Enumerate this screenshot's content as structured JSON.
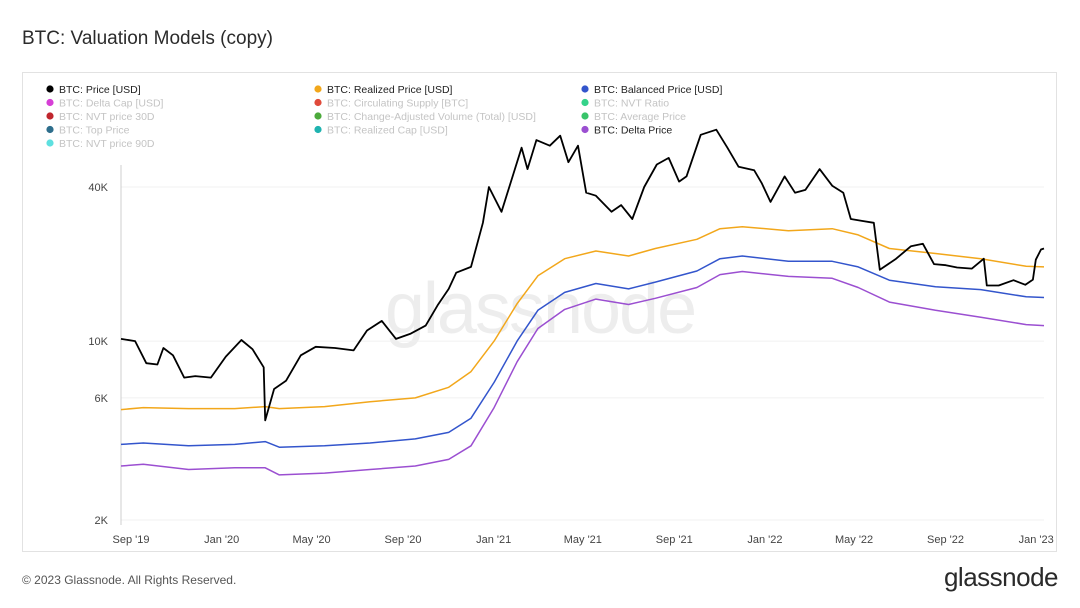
{
  "title": "BTC: Valuation Models (copy)",
  "footer": {
    "copyright": "© 2023 Glassnode. All Rights Reserved.",
    "logo": "glassnode"
  },
  "watermark": "glassnode",
  "chart_data": {
    "type": "line",
    "yscale": "log",
    "ylim": [
      2000,
      80000
    ],
    "xlim": [
      "2019-09-01",
      "2023-01-25"
    ],
    "y_ticks": [
      {
        "value": 2000,
        "label": "2K"
      },
      {
        "value": 6000,
        "label": "6K"
      },
      {
        "value": 10000,
        "label": "10K"
      },
      {
        "value": 40000,
        "label": "40K"
      }
    ],
    "x_ticks": [
      {
        "date": "2019-09-01",
        "label": "Sep '19"
      },
      {
        "date": "2020-01-01",
        "label": "Jan '20"
      },
      {
        "date": "2020-05-01",
        "label": "May '20"
      },
      {
        "date": "2020-09-01",
        "label": "Sep '20"
      },
      {
        "date": "2021-01-01",
        "label": "Jan '21"
      },
      {
        "date": "2021-05-01",
        "label": "May '21"
      },
      {
        "date": "2021-09-01",
        "label": "Sep '21"
      },
      {
        "date": "2022-01-01",
        "label": "Jan '22"
      },
      {
        "date": "2022-05-01",
        "label": "May '22"
      },
      {
        "date": "2022-09-01",
        "label": "Sep '22"
      },
      {
        "date": "2023-01-01",
        "label": "Jan '23"
      }
    ],
    "legend_position": "top-left",
    "legend": [
      {
        "label": "BTC: Price [USD]",
        "color": "#000000",
        "active": true
      },
      {
        "label": "BTC: Realized Price [USD]",
        "color": "#f2a71b",
        "active": true
      },
      {
        "label": "BTC: Balanced Price [USD]",
        "color": "#3355cc",
        "active": true
      },
      {
        "label": "BTC: Delta Cap [USD]",
        "color": "#d63fd6",
        "active": false
      },
      {
        "label": "BTC: Circulating Supply [BTC]",
        "color": "#e04a3a",
        "active": false
      },
      {
        "label": "BTC: NVT Ratio",
        "color": "#35d38a",
        "active": false
      },
      {
        "label": "BTC: NVT price 30D",
        "color": "#c0262d",
        "active": false
      },
      {
        "label": "BTC: Change-Adjusted Volume (Total) [USD]",
        "color": "#4caa3c",
        "active": false
      },
      {
        "label": "BTC: Average Price",
        "color": "#39c46a",
        "active": false
      },
      {
        "label": "BTC: Top Price",
        "color": "#2e6e8c",
        "active": false
      },
      {
        "label": "BTC: Realized Cap [USD]",
        "color": "#1fb3b0",
        "active": false
      },
      {
        "label": "BTC: Delta Price",
        "color": "#9b4fd1",
        "active": true
      },
      {
        "label": "BTC: NVT price 90D",
        "color": "#5ee0e0",
        "active": false
      }
    ],
    "series": [
      {
        "name": "BTC: Price [USD]",
        "color": "#000000",
        "points": [
          [
            "2019-09-01",
            10200
          ],
          [
            "2019-09-20",
            10000
          ],
          [
            "2019-10-05",
            8200
          ],
          [
            "2019-10-20",
            8100
          ],
          [
            "2019-10-28",
            9400
          ],
          [
            "2019-11-10",
            8800
          ],
          [
            "2019-11-25",
            7200
          ],
          [
            "2019-12-10",
            7300
          ],
          [
            "2019-12-31",
            7200
          ],
          [
            "2020-01-20",
            8700
          ],
          [
            "2020-02-10",
            10100
          ],
          [
            "2020-02-25",
            9300
          ],
          [
            "2020-03-11",
            7900
          ],
          [
            "2020-03-13",
            4900
          ],
          [
            "2020-03-25",
            6500
          ],
          [
            "2020-04-10",
            7000
          ],
          [
            "2020-04-30",
            8800
          ],
          [
            "2020-05-20",
            9500
          ],
          [
            "2020-06-15",
            9400
          ],
          [
            "2020-07-10",
            9200
          ],
          [
            "2020-07-28",
            11000
          ],
          [
            "2020-08-17",
            12000
          ],
          [
            "2020-09-05",
            10200
          ],
          [
            "2020-09-25",
            10700
          ],
          [
            "2020-10-15",
            11500
          ],
          [
            "2020-10-31",
            13800
          ],
          [
            "2020-11-15",
            16000
          ],
          [
            "2020-11-25",
            18500
          ],
          [
            "2020-12-15",
            19500
          ],
          [
            "2020-12-31",
            29000
          ],
          [
            "2021-01-08",
            40000
          ],
          [
            "2021-01-25",
            32000
          ],
          [
            "2021-02-10",
            45000
          ],
          [
            "2021-02-21",
            57000
          ],
          [
            "2021-03-01",
            47000
          ],
          [
            "2021-03-13",
            61000
          ],
          [
            "2021-03-31",
            58000
          ],
          [
            "2021-04-14",
            63500
          ],
          [
            "2021-04-25",
            50000
          ],
          [
            "2021-05-08",
            58000
          ],
          [
            "2021-05-19",
            38000
          ],
          [
            "2021-06-01",
            37000
          ],
          [
            "2021-06-22",
            32000
          ],
          [
            "2021-07-05",
            34000
          ],
          [
            "2021-07-20",
            30000
          ],
          [
            "2021-08-05",
            40000
          ],
          [
            "2021-08-22",
            49000
          ],
          [
            "2021-09-07",
            52000
          ],
          [
            "2021-09-21",
            42000
          ],
          [
            "2021-10-01",
            44000
          ],
          [
            "2021-10-20",
            64000
          ],
          [
            "2021-11-10",
            67000
          ],
          [
            "2021-11-25",
            57000
          ],
          [
            "2021-12-10",
            48000
          ],
          [
            "2021-12-31",
            46500
          ],
          [
            "2022-01-10",
            41500
          ],
          [
            "2022-01-22",
            35000
          ],
          [
            "2022-02-10",
            44000
          ],
          [
            "2022-02-24",
            38000
          ],
          [
            "2022-03-10",
            39000
          ],
          [
            "2022-03-29",
            47000
          ],
          [
            "2022-04-15",
            40500
          ],
          [
            "2022-04-30",
            38000
          ],
          [
            "2022-05-10",
            30000
          ],
          [
            "2022-05-25",
            29500
          ],
          [
            "2022-06-10",
            29000
          ],
          [
            "2022-06-18",
            19000
          ],
          [
            "2022-07-10",
            21000
          ],
          [
            "2022-07-30",
            23500
          ],
          [
            "2022-08-15",
            24000
          ],
          [
            "2022-08-30",
            20000
          ],
          [
            "2022-09-15",
            19800
          ],
          [
            "2022-09-30",
            19400
          ],
          [
            "2022-10-20",
            19200
          ],
          [
            "2022-11-05",
            21000
          ],
          [
            "2022-11-09",
            16500
          ],
          [
            "2022-11-25",
            16500
          ],
          [
            "2022-12-15",
            17300
          ],
          [
            "2022-12-31",
            16600
          ],
          [
            "2023-01-10",
            17400
          ],
          [
            "2023-01-14",
            20800
          ],
          [
            "2023-01-21",
            22800
          ],
          [
            "2023-01-25",
            23000
          ]
        ]
      },
      {
        "name": "BTC: Realized Price [USD]",
        "color": "#f2a71b",
        "points": [
          [
            "2019-09-01",
            5400
          ],
          [
            "2019-10-01",
            5500
          ],
          [
            "2019-12-01",
            5450
          ],
          [
            "2020-02-01",
            5450
          ],
          [
            "2020-03-13",
            5550
          ],
          [
            "2020-04-01",
            5450
          ],
          [
            "2020-06-01",
            5550
          ],
          [
            "2020-08-01",
            5800
          ],
          [
            "2020-10-01",
            6000
          ],
          [
            "2020-11-15",
            6600
          ],
          [
            "2020-12-15",
            7600
          ],
          [
            "2021-01-15",
            10000
          ],
          [
            "2021-02-15",
            14000
          ],
          [
            "2021-03-15",
            18000
          ],
          [
            "2021-04-20",
            21000
          ],
          [
            "2021-06-01",
            22500
          ],
          [
            "2021-07-15",
            21500
          ],
          [
            "2021-08-20",
            23000
          ],
          [
            "2021-10-15",
            25000
          ],
          [
            "2021-11-15",
            27500
          ],
          [
            "2021-12-15",
            28000
          ],
          [
            "2022-02-15",
            27000
          ],
          [
            "2022-04-15",
            27500
          ],
          [
            "2022-05-20",
            26000
          ],
          [
            "2022-07-01",
            23000
          ],
          [
            "2022-09-01",
            22000
          ],
          [
            "2022-11-01",
            21000
          ],
          [
            "2023-01-01",
            19600
          ],
          [
            "2023-01-25",
            19500
          ]
        ]
      },
      {
        "name": "BTC: Balanced Price [USD]",
        "color": "#3355cc",
        "points": [
          [
            "2019-09-01",
            3950
          ],
          [
            "2019-10-01",
            4000
          ],
          [
            "2019-12-01",
            3900
          ],
          [
            "2020-02-01",
            3950
          ],
          [
            "2020-03-13",
            4050
          ],
          [
            "2020-04-01",
            3850
          ],
          [
            "2020-06-01",
            3900
          ],
          [
            "2020-08-01",
            4000
          ],
          [
            "2020-10-01",
            4150
          ],
          [
            "2020-11-15",
            4400
          ],
          [
            "2020-12-15",
            5000
          ],
          [
            "2021-01-15",
            6900
          ],
          [
            "2021-02-15",
            10000
          ],
          [
            "2021-03-15",
            13200
          ],
          [
            "2021-04-20",
            15500
          ],
          [
            "2021-06-01",
            16800
          ],
          [
            "2021-07-15",
            16000
          ],
          [
            "2021-08-20",
            17000
          ],
          [
            "2021-10-15",
            18800
          ],
          [
            "2021-11-15",
            21000
          ],
          [
            "2021-12-15",
            21500
          ],
          [
            "2022-02-15",
            20500
          ],
          [
            "2022-04-15",
            20500
          ],
          [
            "2022-05-20",
            19500
          ],
          [
            "2022-07-01",
            17300
          ],
          [
            "2022-09-01",
            16300
          ],
          [
            "2022-11-01",
            15900
          ],
          [
            "2023-01-01",
            14900
          ],
          [
            "2023-01-25",
            14800
          ]
        ]
      },
      {
        "name": "BTC: Delta Price",
        "color": "#9b4fd1",
        "points": [
          [
            "2019-09-01",
            3250
          ],
          [
            "2019-10-01",
            3300
          ],
          [
            "2019-12-01",
            3150
          ],
          [
            "2020-02-01",
            3200
          ],
          [
            "2020-03-13",
            3200
          ],
          [
            "2020-04-01",
            3000
          ],
          [
            "2020-06-01",
            3050
          ],
          [
            "2020-08-01",
            3150
          ],
          [
            "2020-10-01",
            3250
          ],
          [
            "2020-11-15",
            3450
          ],
          [
            "2020-12-15",
            3900
          ],
          [
            "2021-01-15",
            5500
          ],
          [
            "2021-02-15",
            8300
          ],
          [
            "2021-03-15",
            11200
          ],
          [
            "2021-04-20",
            13300
          ],
          [
            "2021-06-01",
            14600
          ],
          [
            "2021-07-15",
            13900
          ],
          [
            "2021-08-20",
            14700
          ],
          [
            "2021-10-15",
            16200
          ],
          [
            "2021-11-15",
            18200
          ],
          [
            "2021-12-15",
            18700
          ],
          [
            "2022-02-15",
            17900
          ],
          [
            "2022-04-15",
            17600
          ],
          [
            "2022-05-20",
            16200
          ],
          [
            "2022-07-01",
            14200
          ],
          [
            "2022-09-01",
            13200
          ],
          [
            "2022-11-01",
            12400
          ],
          [
            "2023-01-01",
            11600
          ],
          [
            "2023-01-25",
            11500
          ]
        ]
      }
    ]
  }
}
